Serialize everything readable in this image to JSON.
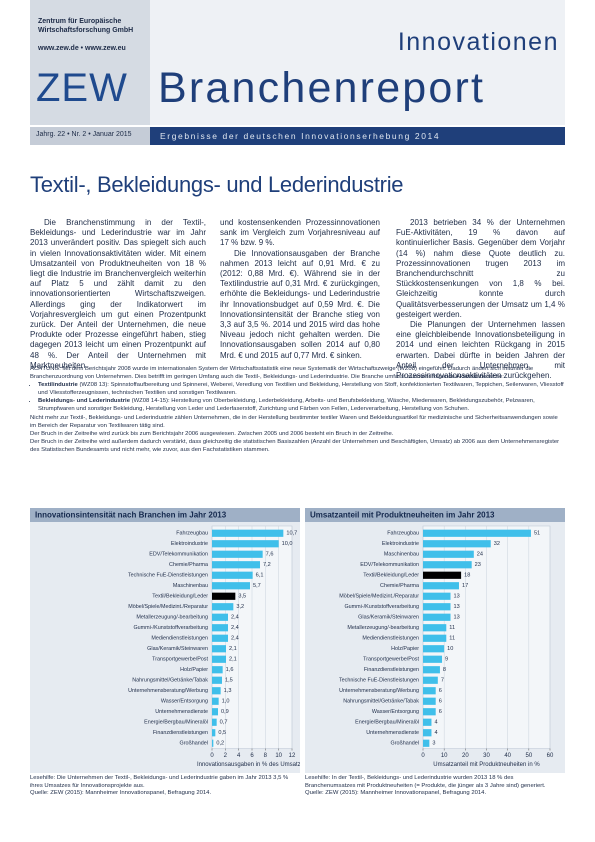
{
  "header": {
    "institute": "Zentrum für Europäische Wirtschaftsforschung GmbH",
    "url": "www.zew.de • www.zew.eu",
    "logo": "ZEW",
    "series": "Innovationen",
    "title": "Branchenreport",
    "issue": "Jahrg. 22 • Nr. 2 • Januar 2015",
    "tagline": "Ergebnisse der deutschen Innovationserhebung 2014"
  },
  "article": {
    "title": "Textil-, Bekleidungs- und Lederindustrie",
    "columns": [
      [
        "Die Branchenstimmung in der Textil-, Bekleidungs- und Lederindustrie war im Jahr 2013 unverändert positiv. Das spiegelt sich auch in vielen Innovationsaktivitäten wider. Mit einem Umsatzanteil von Produktneuheiten von 18 % liegt die Industrie im Branchenvergleich weiterhin auf Platz 5 und zählt damit zu den innovationsorientierten Wirtschaftszweigen. Allerdings ging der Indikatorwert im Vorjahresvergleich um gut einen Prozentpunkt zurück. Der Anteil der Unternehmen, die neue Produkte oder Prozesse eingeführt haben, stieg dagegen 2013 leicht um einen Prozentpunkt auf 48 %. Der Anteil der Unternehmen mit Marktneuheiten"
      ],
      [
        "und kostensenkenden Prozessinnovationen sank im Vergleich zum Vorjahresniveau auf 17 % bzw. 9 %.",
        "Die Innovationsausgaben der Branche nahmen 2013 leicht auf 0,91 Mrd. € zu (2012: 0,88 Mrd. €). Während sie in der Textilindustrie auf 0,31 Mrd. € zurückgingen, erhöhte die Bekleidungs- und Lederindustrie ihr Innovationsbudget auf 0,59 Mrd. €. Die Innovationsintensität der Branche stieg von 3,3 auf 3,5 %. 2014 und 2015 wird das hohe Niveau jedoch nicht gehalten werden. Die Innovationsausgaben sollen 2014 auf 0,80 Mrd. € und 2015 auf 0,77 Mrd. € sinken."
      ],
      [
        "2013 betrieben 34 % der Unternehmen FuE-Aktivitäten, 19 % davon auf kontinuierlicher Basis. Gegenüber dem Vorjahr (14 %) nahm diese Quote deutlich zu. Prozessinnovationen trugen 2013 im Branchendurchschnitt zu Stückkostensenkungen von 1,8 % bei. Gleichzeitig konnte durch Qualitätsverbesserungen der Umsatz um 1,4 % gesteigert werden.",
        "Die Planungen der Unternehmen lassen eine gleichbleibende Innovationsbeteiligung in 2014 und einen leichten Rückgang in 2015 erwarten. Dabei dürfte in beiden Jahren der Anteil der Unternehmen mit Prozessinnovationsaktivitäten zurückgehen."
      ]
    ]
  },
  "notes": {
    "intro": "ACHTUNG: Mit dem Berichtsjahr 2008 wurde im internationalen System der Wirtschaftsstatistik eine neue Systematik der Wirtschaftszweige (WZ08) eingeführt. Dadurch ändert sich mitunter die Branchenzuordnung von Unternehmen. Dies betrifft im geringen Umfang auch die Textil-, Bekleidungs- und Lederindustrie. Die Branche umfasst nunmehr folgende Aktivitätsbereiche:",
    "bullets": [
      {
        "term": "Textilindustrie",
        "text": "(WZ08 13): Spinnstoffaufbereitung und Spinnerei, Weberei, Veredlung von Textilien und Bekleidung, Herstellung von Stoff, konfektionierten Textilwaren, Teppichen, Seilerwaren, Vliesstoff und Vliesstofferzeugnissen, technischen Textilien und sonstigen Textilwaren."
      },
      {
        "term": "Bekleidungs- und Lederindustrie",
        "text": "(WZ08 14-15): Herstellung von Oberbekleidung, Lederbekleidung, Arbeits- und Berufsbekleidung, Wäsche, Miederwaren, Bekleidungszubehör, Pelzwaren, Strumpfwaren und sonstiger Bekleidung, Herstellung von Leder und Lederfaserstoff, Zurichtung und Färben von Fellen, Lederverarbeitung, Herstellung von Schuhen."
      }
    ],
    "after": [
      "Nicht mehr zur Textil-, Bekleidungs- und Lederindustrie zählen Unternehmen, die in der Herstellung bestimmter textiler Waren und Bekleidungsartikel für medizinische und Sicherheitsanwendungen sowie im Bereich der Reparatur von Textilwaren tätig sind.",
      "Der Bruch in der Zeitreihe wird zurück bis zum Berichtsjahr 2006 ausgewiesen. Zwischen 2005 und 2006 besteht ein Bruch in der Zeitreihe.",
      "Der Bruch in der Zeitreihe wird außerdem dadurch verstärkt, dass gleichzeitig die statistischen Basiszahlen (Anzahl der Unternehmen und Beschäftigten, Umsatz) ab 2006 aus dem Unternehmensregister des Statistischen Bundesamts und nicht mehr, wie zuvor, aus den Fachstatistiken stammen."
    ]
  },
  "chart_data": [
    {
      "type": "barh",
      "title": "Innovationsintensität nach Branchen im Jahr 2013",
      "categories": [
        "Fahrzeugbau",
        "Elektroindustrie",
        "EDV/Telekommunikation",
        "Chemie/Pharma",
        "Technische FuE-Dienstleistungen",
        "Maschinenbau",
        "Textil/Bekleidung/Leder",
        "Möbel/Spiele/Medizint./Reparatur",
        "Metallerzeugung/-bearbeitung",
        "Gummi-/Kunststoffverarbeitung",
        "Mediendienstleistungen",
        "Glas/Keramik/Steinwaren",
        "Transportgewerbe/Post",
        "Holz/Papier",
        "Nahrungsmittel/Getränke/Tabak",
        "Unternehmensberatung/Werbung",
        "Wasser/Entsorgung",
        "Unternehmensdienste",
        "Energie/Bergbau/Mineralöl",
        "Finanzdienstleistungen",
        "Großhandel"
      ],
      "values": [
        10.7,
        10.0,
        7.6,
        7.2,
        6.1,
        5.7,
        3.5,
        3.2,
        2.4,
        2.4,
        2.4,
        2.1,
        2.1,
        1.6,
        1.5,
        1.3,
        1.0,
        0.9,
        0.7,
        0.5,
        0.2
      ],
      "value_labels": [
        "10,7",
        "10,0",
        "7,6",
        "7,2",
        "6,1",
        "5,7",
        "3,5",
        "3,2",
        "2,4",
        "2,4",
        "2,4",
        "2,1",
        "2,1",
        "1,6",
        "1,5",
        "1,3",
        "1,0",
        "0,9",
        "0,7",
        "0,5",
        "0,2"
      ],
      "color": "#3fbfea",
      "highlight": 6,
      "highlight_color": "#000000",
      "xlim": [
        0,
        12
      ],
      "xticks": [
        0,
        2,
        4,
        6,
        8,
        10,
        12
      ],
      "xlabel": "Innovationsausgaben in % des Umsatzes",
      "grid": true,
      "reading_aid": "Lesehilfe: Die Unternehmen der Textil-, Bekleidungs- und Lederindustrie gaben im Jahr 2013 3,5 % ihres Umsatzes für Innovationsprojekte aus.",
      "source": "Quelle: ZEW (2015): Mannheimer Innovationspanel, Befragung 2014."
    },
    {
      "type": "barh",
      "title": "Umsatzanteil mit Produktneuheiten im Jahr 2013",
      "categories": [
        "Fahrzeugbau",
        "Elektroindustrie",
        "Maschinenbau",
        "EDV/Telekommunikation",
        "Textil/Bekleidung/Leder",
        "Chemie/Pharma",
        "Möbel/Spiele/Medizint./Reparatur",
        "Gummi-/Kunststoffverarbeitung",
        "Glas/Keramik/Steinwaren",
        "Metallerzeugung/-bearbeitung",
        "Mediendienstleistungen",
        "Holz/Papier",
        "Transportgewerbe/Post",
        "Finanzdienstleistungen",
        "Technische FuE-Dienstleistungen",
        "Unternehmensberatung/Werbung",
        "Nahrungsmittel/Getränke/Tabak",
        "Wasser/Entsorgung",
        "Energie/Bergbau/Mineralöl",
        "Unternehmensdienste",
        "Großhandel"
      ],
      "values": [
        51,
        32,
        24,
        23,
        18,
        17,
        13,
        13,
        13,
        11,
        11,
        10,
        9,
        8,
        7,
        6,
        6,
        6,
        4,
        4,
        3
      ],
      "color": "#3fbfea",
      "highlight": 4,
      "highlight_color": "#000000",
      "xlim": [
        0,
        60
      ],
      "xticks": [
        0,
        10,
        20,
        30,
        40,
        50,
        60
      ],
      "xlabel": "Umsatzanteil mit Produktneuheiten in %",
      "grid": true,
      "reading_aid": "Lesehilfe: In der Textil-, Bekleidungs- und Lederindustrie wurden 2013 18 % des Branchenumsatzes mit Produktneuheiten (= Produkte, die jünger als 3 Jahre sind) generiert.",
      "source": "Quelle: ZEW (2015): Mannheimer Innovationspanel, Befragung 2014."
    }
  ]
}
